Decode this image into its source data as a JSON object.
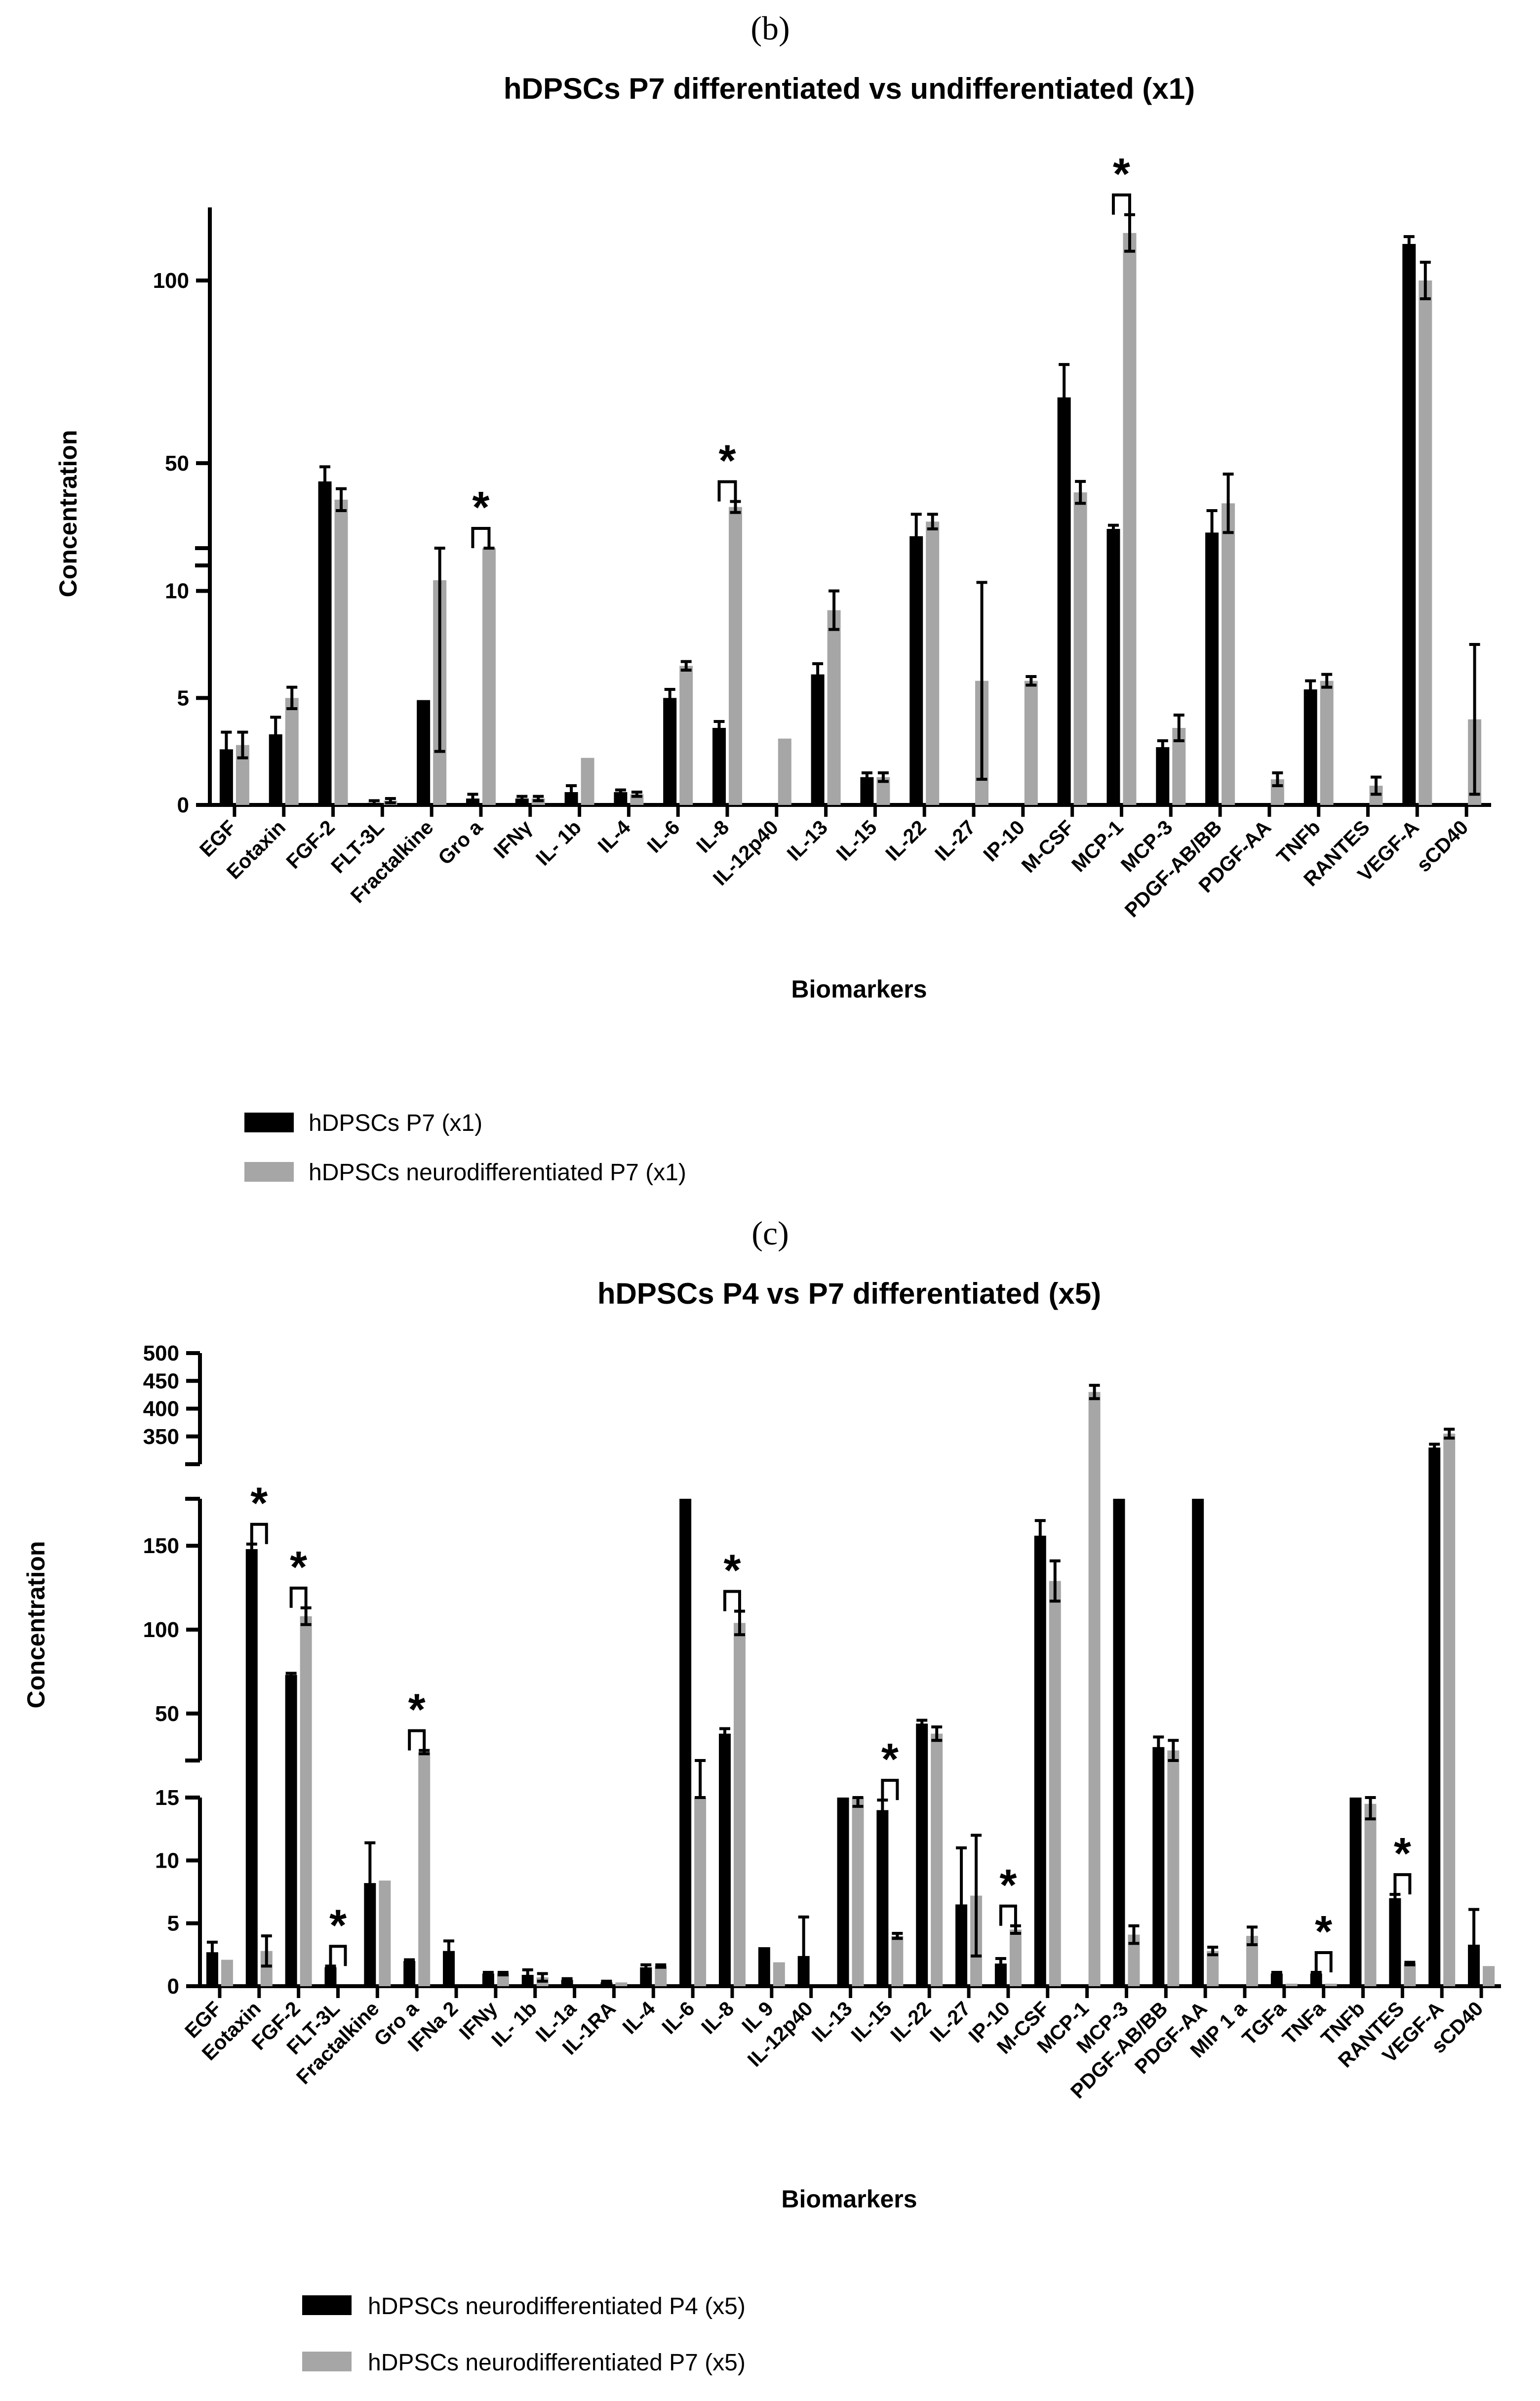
{
  "chart_data": [
    {
      "panel": "(b)",
      "type": "bar",
      "title": "hDPSCs P7 differentiated vs undifferentiated (x1)",
      "xlabel": "Biomarkers",
      "ylabel": "Concentration",
      "y_segments": [
        {
          "range": [
            0,
            12
          ],
          "ticks": [
            0,
            5,
            10
          ]
        },
        {
          "range": [
            22,
            120
          ],
          "ticks": [
            50,
            100
          ]
        }
      ],
      "categories": [
        "EGF",
        "Eotaxin",
        "FGF-2",
        "FLT-3L",
        "Fractalkine",
        "Gro a",
        "IFNγ",
        "IL- 1b",
        "IL-4",
        "IL-6",
        "IL-8",
        "IL-12p40",
        "IL-13",
        "IL-15",
        "IL-22",
        "IL-27",
        "IP-10",
        "M-CSF",
        "MCP-1",
        "MCP-3",
        "PDGF-AB/BB",
        "PDGF-AA",
        "TNFb",
        "RANTES",
        "VEGF-A",
        "sCD40"
      ],
      "series": [
        {
          "name": "hDPSCs P7 (x1)",
          "color": "#000000",
          "values": [
            2.6,
            3.3,
            45,
            0.1,
            4.9,
            0.3,
            0.3,
            0.6,
            0.6,
            5.0,
            3.6,
            null,
            6.1,
            1.3,
            30,
            null,
            null,
            68,
            32,
            2.7,
            31,
            null,
            5.4,
            null,
            110,
            null
          ],
          "errors": [
            0.8,
            0.8,
            4,
            0.1,
            0,
            0.2,
            0.1,
            0.3,
            0.1,
            0.4,
            0.3,
            null,
            0.5,
            0.2,
            6,
            null,
            null,
            9,
            1,
            0.3,
            6,
            null,
            0.4,
            null,
            2,
            null
          ]
        },
        {
          "name": "hDPSCs neurodifferentiated P7 (x1)",
          "color": "#a6a6a6",
          "values": [
            2.8,
            5.0,
            40,
            0.2,
            10.5,
            15,
            0.3,
            2.2,
            0.5,
            6.5,
            38,
            3.1,
            9.1,
            1.3,
            34,
            5.8,
            5.8,
            42,
            113,
            3.6,
            39,
            1.2,
            5.8,
            0.9,
            100,
            4.0
          ],
          "errors": [
            0.6,
            0.5,
            3,
            0.1,
            8,
            0.5,
            0.1,
            0,
            0.1,
            0.2,
            1.5,
            0,
            0.9,
            0.2,
            2,
            4.6,
            0.2,
            3,
            5,
            0.6,
            8,
            0.3,
            0.3,
            0.4,
            5,
            3.5
          ]
        }
      ],
      "significance_label": "*",
      "significant_categories": [
        "Gro a",
        "IL-8",
        "MCP-1"
      ]
    },
    {
      "panel": "(c)",
      "type": "bar",
      "title": "hDPSCs P4 vs P7 differentiated (x5)",
      "xlabel": "Biomarkers",
      "ylabel": "Concentration",
      "y_segments": [
        {
          "range": [
            0,
            15
          ],
          "ticks": [
            0,
            5,
            10,
            15
          ]
        },
        {
          "range": [
            22,
            178
          ],
          "ticks": [
            50,
            100,
            150
          ]
        },
        {
          "range": [
            300,
            500
          ],
          "ticks": [
            350,
            400,
            450,
            500
          ]
        }
      ],
      "categories": [
        "EGF",
        "Eotaxin",
        "FGF-2",
        "FLT-3L",
        "Fractalkine",
        "Gro a",
        "IFNa 2",
        "IFNy",
        "IL- 1b",
        "IL-1a",
        "IL-1RA",
        "IL-4",
        "IL-6",
        "IL-8",
        "IL 9",
        "IL-12p40",
        "IL-13",
        "IL-15",
        "IL-22",
        "IL-27",
        "IP-10",
        "M-CSF",
        "MCP-1",
        "MCP-3",
        "PDGF-AB/BB",
        "PDGF-AA",
        "MIP 1 a",
        "TGFa",
        "TNFa",
        "TNFb",
        "RANTES",
        "VEGF-A",
        "sCD40"
      ],
      "series": [
        {
          "name": "hDPSCs neurodifferentiated P4 (x5)",
          "color": "#000000",
          "values": [
            2.7,
            148,
            73,
            1.5,
            8.2,
            2.0,
            2.8,
            1.0,
            0.9,
            0.5,
            0.3,
            1.5,
            250,
            38,
            3.1,
            2.4,
            18,
            14,
            44,
            6.5,
            1.8,
            156,
            null,
            250,
            30,
            250,
            null,
            1.0,
            1.0,
            18,
            7.0,
            330,
            3.3
          ],
          "errors": [
            0.8,
            3,
            1,
            0.1,
            3.2,
            0.1,
            0.8,
            0.1,
            0.4,
            0.1,
            0.1,
            0.2,
            0,
            3,
            0,
            3.1,
            0,
            0.8,
            2,
            4.5,
            0.4,
            9,
            null,
            0,
            6,
            0,
            null,
            0.1,
            0.1,
            0,
            0.3,
            6,
            2.8
          ]
        },
        {
          "name": "hDPSCs neurodifferentiated P7 (x5)",
          "color": "#a6a6a6",
          "values": [
            2.1,
            2.8,
            108,
            null,
            8.4,
            27,
            null,
            1.0,
            0.7,
            null,
            0.3,
            1.6,
            21,
            104,
            1.9,
            null,
            15,
            4.0,
            38,
            7.2,
            4.5,
            129,
            430,
            4.1,
            28,
            2.8,
            4.0,
            0.2,
            0.2,
            14.5,
            1.8,
            355,
            1.6
          ],
          "errors": [
            0,
            1.2,
            5,
            null,
            0,
            1,
            null,
            0.1,
            0.3,
            null,
            0,
            0.1,
            1,
            7,
            0,
            null,
            0.7,
            0.2,
            4,
            4.8,
            0.3,
            12,
            12,
            0.7,
            6,
            0.3,
            0.7,
            0,
            0,
            1.2,
            0.1,
            8,
            0
          ]
        }
      ],
      "significance_label": "*",
      "significant_categories": [
        "Eotaxin",
        "FGF-2",
        "FLT-3L",
        "Gro a",
        "IL-8",
        "IL-15",
        "IP-10",
        "TNFa",
        "RANTES"
      ]
    }
  ]
}
